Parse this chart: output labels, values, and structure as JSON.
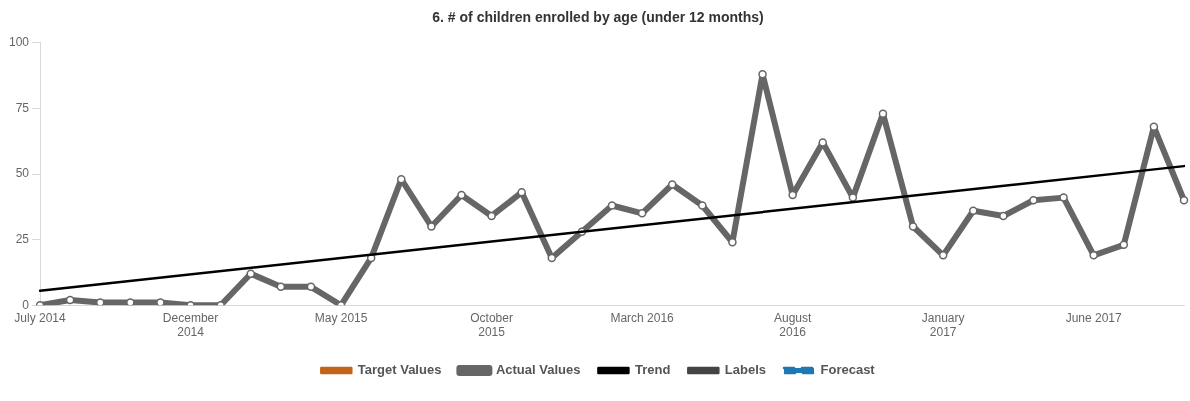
{
  "chart_data": {
    "type": "line",
    "title": "6. # of children enrolled by age (under 12 months)",
    "categories": [
      "July 2014",
      null,
      null,
      null,
      null,
      "December 2014",
      null,
      null,
      null,
      null,
      "May 2015",
      null,
      null,
      null,
      null,
      "October 2015",
      null,
      null,
      null,
      null,
      "March 2016",
      null,
      null,
      null,
      null,
      "August 2016",
      null,
      null,
      null,
      null,
      "January 2017",
      null,
      null,
      null,
      null,
      "June 2017",
      null,
      null,
      null
    ],
    "series": [
      {
        "name": "Target Values",
        "color": "#c0651a",
        "marker": "none",
        "values": [
          null,
          null,
          null,
          null,
          null,
          null,
          null,
          null,
          null,
          null,
          null,
          null,
          null,
          null,
          null,
          null,
          null,
          null,
          null,
          null,
          null,
          null,
          null,
          null,
          null,
          null,
          null,
          null,
          null,
          null,
          null,
          null,
          null,
          null,
          null,
          null,
          null,
          null,
          null
        ]
      },
      {
        "name": "Actual Values",
        "color": "#666666",
        "marker": "circle",
        "values": [
          0,
          2,
          1,
          1,
          1,
          0,
          0,
          12,
          7,
          7,
          0,
          18,
          48,
          30,
          42,
          34,
          43,
          18,
          28,
          38,
          35,
          46,
          38,
          24,
          88,
          42,
          62,
          41,
          73,
          30,
          19,
          36,
          34,
          40,
          41,
          19,
          23,
          68,
          40
        ]
      },
      {
        "name": "Trend",
        "color": "#000000",
        "marker": "none",
        "values": [
          5.5,
          null,
          null,
          null,
          null,
          null,
          null,
          null,
          null,
          null,
          null,
          null,
          null,
          null,
          null,
          null,
          null,
          null,
          null,
          null,
          null,
          null,
          null,
          null,
          null,
          null,
          null,
          null,
          null,
          null,
          null,
          null,
          null,
          null,
          null,
          null,
          null,
          null,
          53
        ]
      },
      {
        "name": "Labels",
        "color": "#444444",
        "marker": "none",
        "values": [
          null,
          null,
          null,
          null,
          null,
          null,
          null,
          null,
          null,
          null,
          null,
          null,
          null,
          null,
          null,
          null,
          null,
          null,
          null,
          null,
          null,
          null,
          null,
          null,
          null,
          null,
          null,
          null,
          null,
          null,
          null,
          null,
          null,
          null,
          null,
          null,
          null,
          null,
          null
        ]
      },
      {
        "name": "Forecast",
        "color": "#1f77b4",
        "marker": "none",
        "line_style": "dashed",
        "values": [
          null,
          null,
          null,
          null,
          null,
          null,
          null,
          null,
          null,
          null,
          null,
          null,
          null,
          null,
          null,
          null,
          null,
          null,
          null,
          null,
          null,
          null,
          null,
          null,
          null,
          null,
          null,
          null,
          null,
          null,
          null,
          null,
          null,
          null,
          null,
          null,
          null,
          null,
          null
        ]
      }
    ],
    "ylim": [
      0,
      100
    ],
    "yticks": [
      0,
      25,
      50,
      75,
      100
    ],
    "grid": false,
    "legend": "bottom"
  }
}
